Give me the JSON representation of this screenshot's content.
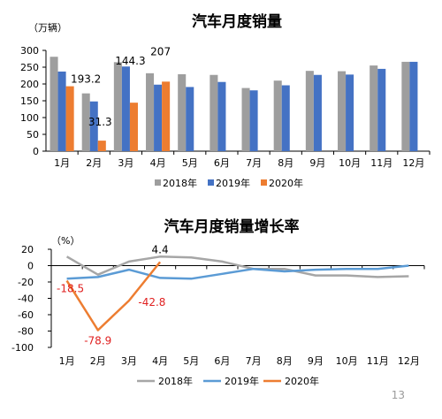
{
  "page": {
    "page_number": "13"
  },
  "chart_data": [
    {
      "type": "bar",
      "title": "汽车月度销量",
      "ylabel": "（万辆）",
      "xlabel": "",
      "ylim": [
        0,
        300
      ],
      "yticks": [
        0,
        50,
        100,
        150,
        200,
        250,
        300
      ],
      "grid": false,
      "legend_position": "bottom",
      "categories": [
        "1月",
        "2月",
        "3月",
        "4月",
        "5月",
        "6月",
        "7月",
        "8月",
        "9月",
        "10月",
        "11月",
        "12月"
      ],
      "series": [
        {
          "name": "2018年",
          "color": "#9e9e9e",
          "values": [
            281,
            172,
            265,
            232,
            229,
            227,
            188,
            210,
            239,
            238,
            255,
            266
          ]
        },
        {
          "name": "2019年",
          "color": "#4472c4",
          "values": [
            237,
            148,
            252,
            198,
            191,
            206,
            181,
            196,
            227,
            228,
            245,
            266
          ]
        },
        {
          "name": "2020年",
          "color": "#ed7d31",
          "values": [
            193.2,
            31.3,
            144.3,
            207,
            null,
            null,
            null,
            null,
            null,
            null,
            null,
            null
          ]
        }
      ],
      "data_labels": [
        {
          "series": "2020年",
          "category": "1月",
          "text": "193.2"
        },
        {
          "series": "2020年",
          "category": "2月",
          "text": "31.3"
        },
        {
          "series": "2020年",
          "category": "3月",
          "text": "144.3"
        },
        {
          "series": "2020年",
          "category": "4月",
          "text": "207"
        }
      ]
    },
    {
      "type": "line",
      "title": "汽车月度销量增长率",
      "ylabel": "（%）",
      "xlabel": "",
      "ylim": [
        -100,
        20
      ],
      "yticks": [
        20,
        0,
        -20,
        -40,
        -60,
        -80,
        -100
      ],
      "grid": false,
      "legend_position": "bottom",
      "categories": [
        "1月",
        "2月",
        "3月",
        "4月",
        "5月",
        "6月",
        "7月",
        "8月",
        "9月",
        "10月",
        "11月",
        "12月"
      ],
      "series": [
        {
          "name": "2018年",
          "color": "#a6a6a6",
          "values": [
            11,
            -11,
            5,
            11,
            10,
            5,
            -4,
            -4,
            -12,
            -12,
            -14,
            -13
          ]
        },
        {
          "name": "2019年",
          "color": "#5b9bd5",
          "values": [
            -16,
            -14,
            -5,
            -15,
            -16,
            -10,
            -4,
            -7,
            -5,
            -4,
            -4,
            0
          ]
        },
        {
          "name": "2020年",
          "color": "#ed7d31",
          "values": [
            -18.5,
            -78.9,
            -42.8,
            4.4,
            null,
            null,
            null,
            null,
            null,
            null,
            null,
            null
          ]
        }
      ],
      "data_labels": [
        {
          "series": "2020年",
          "category": "1月",
          "text": "-18.5"
        },
        {
          "series": "2020年",
          "category": "2月",
          "text": "-78.9"
        },
        {
          "series": "2020年",
          "category": "3月",
          "text": "-42.8"
        },
        {
          "series": "2020年",
          "category": "4月",
          "text": "4.4"
        }
      ]
    }
  ]
}
